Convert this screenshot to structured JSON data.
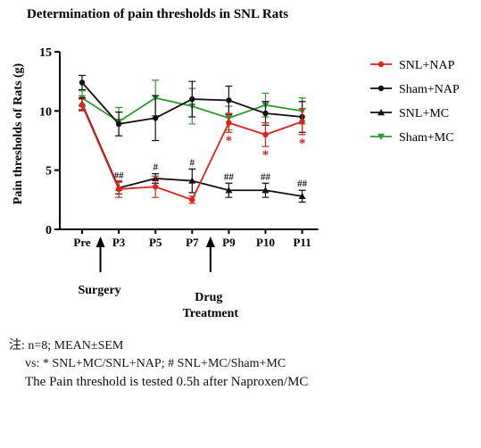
{
  "chart_data": {
    "type": "line",
    "title": "Determination of pain thresholds in SNL Rats",
    "y_label": "Pain thresholds of Rats (g)",
    "categories": [
      "Pre",
      "P3",
      "P5",
      "P7",
      "P9",
      "P10",
      "P11"
    ],
    "ylim": [
      0,
      15
    ],
    "yticks": [
      0,
      5,
      10,
      15
    ],
    "legend": "upper right",
    "series": [
      {
        "name": "SNL+NAP",
        "color": "#e0201b",
        "marker": "circle",
        "values": [
          10.5,
          3.4,
          3.6,
          2.5,
          9.0,
          8.0,
          9.1
        ],
        "errors": [
          0.5,
          0.7,
          0.9,
          0.3,
          0.8,
          1.0,
          1.1
        ],
        "labels": [
          null,
          null,
          null,
          null,
          "*",
          "*",
          "*"
        ],
        "label_position": "below"
      },
      {
        "name": "Sham+NAP",
        "color": "#111111",
        "marker": "circle",
        "values": [
          12.4,
          8.9,
          9.4,
          11.0,
          10.9,
          9.8,
          9.5
        ],
        "errors": [
          0.6,
          1.0,
          1.9,
          1.5,
          1.2,
          1.0,
          1.3
        ],
        "labels": [
          null,
          null,
          null,
          null,
          null,
          null,
          null
        ],
        "label_position": "above"
      },
      {
        "name": "SNL+MC",
        "color": "#111111",
        "marker": "triangle-up",
        "values": [
          10.6,
          3.5,
          4.3,
          4.1,
          3.3,
          3.3,
          2.8
        ],
        "errors": [
          0.5,
          0.5,
          0.4,
          1.0,
          0.6,
          0.6,
          0.5
        ],
        "labels": [
          null,
          "##",
          "#",
          "#",
          "##",
          "##",
          "##"
        ],
        "label_position": "above"
      },
      {
        "name": "Sham+MC",
        "color": "#2e9a2e",
        "marker": "triangle-down",
        "values": [
          11.1,
          9.1,
          11.1,
          10.4,
          9.4,
          10.5,
          10.0
        ],
        "errors": [
          0.6,
          1.2,
          1.5,
          1.5,
          1.0,
          1.0,
          1.1
        ],
        "labels": [
          null,
          null,
          null,
          null,
          null,
          null,
          null
        ],
        "label_position": "above"
      }
    ],
    "annotations": [
      "Surgery",
      "Drug",
      "Treatment"
    ]
  },
  "notes": [
    "注: n=8;  MEAN±SEM",
    "vs: * SNL+MC/SNL+NAP;  # SNL+MC/Sham+MC",
    "The Pain threshold is tested 0.5h after Naproxen/MC"
  ]
}
